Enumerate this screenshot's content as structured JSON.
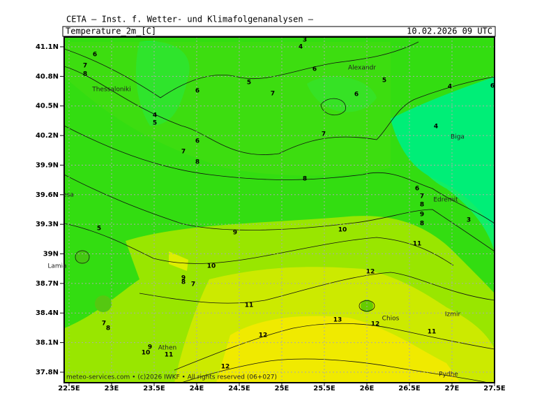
{
  "header": "CETA – Inst. f. Wetter- und Klimafolgenanalysen –",
  "title": "Temperature_2m_[C]",
  "date": "10.02.2026 09 UTC",
  "lat_labels": [
    "41.1N",
    "40.8N",
    "40.5N",
    "40.2N",
    "39.9N",
    "39.6N",
    "39.3N",
    "39N",
    "38.7N",
    "38.4N",
    "38.1N",
    "37.8N"
  ],
  "lon_labels": [
    "22.5E",
    "23E",
    "23.5E",
    "24E",
    "24.5E",
    "25E",
    "25.5E",
    "26E",
    "26.5E",
    "27E",
    "27.5E"
  ],
  "places": [
    "Alexandr",
    "Thessaloniki",
    "Biga",
    "Edremit",
    "esa",
    "Lamia",
    "Izmir",
    "Chios",
    "Athen",
    "Pydhe"
  ],
  "contour_labels": [
    "3",
    "4",
    "6",
    "7",
    "8",
    "6",
    "5",
    "7",
    "6",
    "6",
    "5",
    "4",
    "6",
    "4",
    "5",
    "4",
    "7",
    "6",
    "7",
    "8",
    "8",
    "6",
    "7",
    "8",
    "9",
    "8",
    "3",
    "5",
    "9",
    "10",
    "11",
    "10",
    "12",
    "9",
    "8",
    "7",
    "11",
    "13",
    "12",
    "11",
    "7",
    "8",
    "12",
    "9",
    "10",
    "11",
    "12"
  ],
  "footer": "meteo-services.com • (c)2026 IWKF • All rights reserved (06+027)"
}
